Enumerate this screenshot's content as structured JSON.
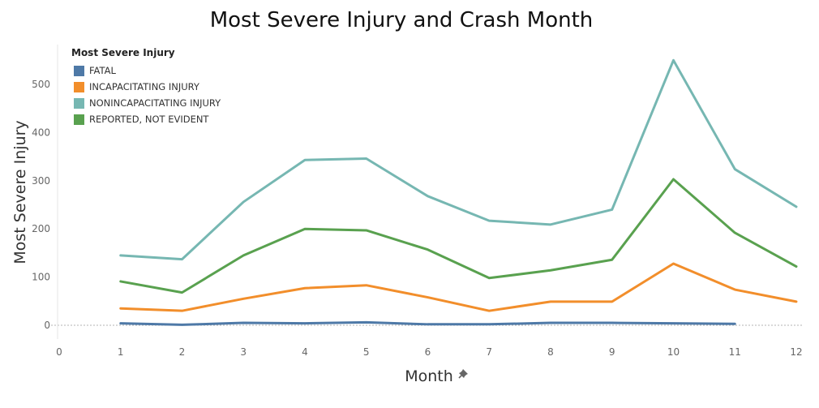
{
  "chart_data": {
    "type": "line",
    "title": "Most Severe Injury and Crash Month",
    "xlabel": "Month",
    "ylabel": "Most Severe Injury",
    "xlim": [
      0,
      12
    ],
    "ylim": [
      -30,
      560
    ],
    "x_ticks": [
      0,
      1,
      2,
      3,
      4,
      5,
      6,
      7,
      8,
      9,
      10,
      11,
      12
    ],
    "y_ticks": [
      0,
      100,
      200,
      300,
      400,
      500
    ],
    "grid": false,
    "zero_line": true,
    "legend_title": "Most Severe Injury",
    "legend_position": "top-left",
    "series": [
      {
        "name": "FATAL",
        "color": "#4e79a7",
        "x": [
          1,
          2,
          3,
          4,
          5,
          6,
          7,
          8,
          9,
          10,
          11
        ],
        "values": [
          4,
          1,
          5,
          4,
          6,
          2,
          2,
          5,
          5,
          4,
          3
        ]
      },
      {
        "name": "INCAPACITATING INJURY",
        "color": "#f28e2b",
        "x": [
          1,
          2,
          3,
          4,
          5,
          6,
          7,
          8,
          9,
          10,
          11,
          12
        ],
        "values": [
          35,
          30,
          55,
          77,
          83,
          58,
          30,
          49,
          49,
          128,
          74,
          49
        ]
      },
      {
        "name": "NONINCAPACITATING INJURY",
        "color": "#76b7b2",
        "x": [
          1,
          2,
          3,
          4,
          5,
          6,
          7,
          8,
          9,
          10,
          11,
          12
        ],
        "values": [
          145,
          137,
          256,
          343,
          346,
          268,
          217,
          209,
          240,
          550,
          324,
          246
        ]
      },
      {
        "name": "REPORTED, NOT EVIDENT",
        "color": "#59a14f",
        "x": [
          1,
          2,
          3,
          4,
          5,
          6,
          7,
          8,
          9,
          10,
          11,
          12
        ],
        "values": [
          91,
          68,
          145,
          200,
          197,
          157,
          98,
          114,
          136,
          303,
          192,
          122
        ]
      }
    ]
  }
}
